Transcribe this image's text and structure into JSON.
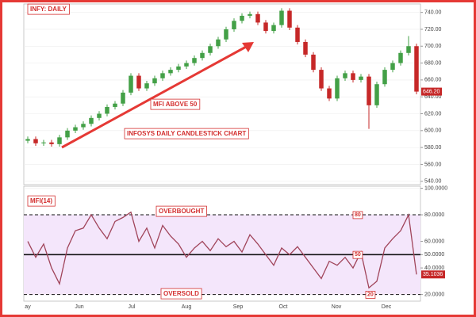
{
  "chart_data": [
    {
      "type": "candlestick",
      "title": "INFY: DAILY",
      "annotations": [
        "MFI ABOVE 50",
        "INFOSYS DAILY CANDLESTICK CHART"
      ],
      "open": [
        588,
        590,
        585,
        586,
        584,
        592,
        600,
        604,
        608,
        615,
        620,
        628,
        632,
        645,
        665,
        650,
        656,
        662,
        668,
        672,
        676,
        680,
        686,
        692,
        700,
        708,
        720,
        730,
        736,
        738,
        728,
        718,
        725,
        742,
        722,
        705,
        690,
        672,
        650,
        638,
        662,
        668,
        660,
        664,
        630,
        655,
        672,
        680,
        692,
        700
      ],
      "high": [
        593,
        593,
        589,
        589,
        595,
        603,
        607,
        611,
        618,
        623,
        631,
        635,
        648,
        668,
        668,
        659,
        665,
        671,
        675,
        679,
        683,
        689,
        695,
        703,
        711,
        723,
        733,
        739,
        741,
        741,
        731,
        728,
        745,
        745,
        725,
        708,
        693,
        675,
        653,
        665,
        671,
        671,
        667,
        667,
        658,
        675,
        683,
        695,
        712,
        703
      ],
      "low": [
        585,
        582,
        582,
        581,
        581,
        589,
        597,
        601,
        605,
        612,
        617,
        625,
        629,
        642,
        647,
        647,
        653,
        659,
        665,
        669,
        673,
        677,
        683,
        689,
        697,
        705,
        717,
        727,
        733,
        725,
        715,
        715,
        722,
        719,
        702,
        687,
        669,
        647,
        635,
        635,
        659,
        657,
        657,
        602,
        627,
        652,
        669,
        677,
        689,
        643
      ],
      "close": [
        590,
        585,
        586,
        584,
        592,
        600,
        604,
        608,
        615,
        620,
        628,
        632,
        645,
        665,
        650,
        656,
        662,
        668,
        672,
        676,
        680,
        686,
        692,
        700,
        708,
        720,
        730,
        736,
        738,
        728,
        718,
        725,
        742,
        722,
        705,
        690,
        672,
        650,
        638,
        662,
        668,
        660,
        664,
        630,
        655,
        672,
        680,
        692,
        700,
        646.2
      ],
      "up_color": "#43a047",
      "down_color": "#c62828",
      "last_label": {
        "value": 646.2,
        "label": "646.20"
      },
      "xlim": [
        -0.5,
        49.5
      ],
      "ylim": [
        536,
        750
      ],
      "yticks": [
        {
          "value": 540,
          "label": "540.00"
        },
        {
          "value": 560,
          "label": "560.00"
        },
        {
          "value": 580,
          "label": "580.00"
        },
        {
          "value": 600,
          "label": "600.00"
        },
        {
          "value": 620,
          "label": "620.00"
        },
        {
          "value": 640,
          "label": "640.00"
        },
        {
          "value": 660,
          "label": "660.00"
        },
        {
          "value": 680,
          "label": "680.00"
        },
        {
          "value": 700,
          "label": "700.00"
        },
        {
          "value": 720,
          "label": "720.00"
        },
        {
          "value": 740,
          "label": "740.00"
        }
      ]
    },
    {
      "type": "line",
      "title": "MFI(14)",
      "values": [
        60,
        48,
        58,
        40,
        28,
        55,
        68,
        70,
        80,
        70,
        62,
        75,
        78,
        82,
        60,
        70,
        55,
        72,
        64,
        58,
        48,
        55,
        60,
        53,
        62,
        56,
        60,
        52,
        65,
        58,
        50,
        42,
        55,
        50,
        56,
        48,
        40,
        32,
        45,
        42,
        48,
        40,
        52,
        25,
        30,
        55,
        62,
        68,
        80,
        35.1036
      ],
      "color": "#a0445a",
      "band": [
        20,
        80
      ],
      "band_color": "#f4e6fb",
      "ref_lines": [
        {
          "value": 80,
          "label": "80"
        },
        {
          "value": 50,
          "label": "50"
        },
        {
          "value": 20,
          "label": "20"
        }
      ],
      "ref_annotations": [
        "OVERBOUGHT",
        "OVERSOLD"
      ],
      "last_label": {
        "value": 35.1036,
        "label": "35.1036"
      },
      "xlim": [
        -0.5,
        49.5
      ],
      "ylim": [
        15,
        101.5
      ],
      "xticks": [
        {
          "value": 0,
          "label": "ay"
        },
        {
          "value": 6.5,
          "label": "Jun"
        },
        {
          "value": 13.1,
          "label": "Jul"
        },
        {
          "value": 20,
          "label": "Aug"
        },
        {
          "value": 26.5,
          "label": "Sep"
        },
        {
          "value": 32.2,
          "label": "Oct"
        },
        {
          "value": 38.9,
          "label": "Nov"
        },
        {
          "value": 45.2,
          "label": "Dec"
        }
      ],
      "yticks": [
        {
          "value": 20,
          "label": "20.0000"
        },
        {
          "value": 40,
          "label": "40.0000"
        },
        {
          "value": 50,
          "label": "50.0000"
        },
        {
          "value": 60,
          "label": "60.0000"
        },
        {
          "value": 80,
          "label": "80.0000"
        },
        {
          "value": 100,
          "label": "100.0000"
        }
      ]
    }
  ]
}
